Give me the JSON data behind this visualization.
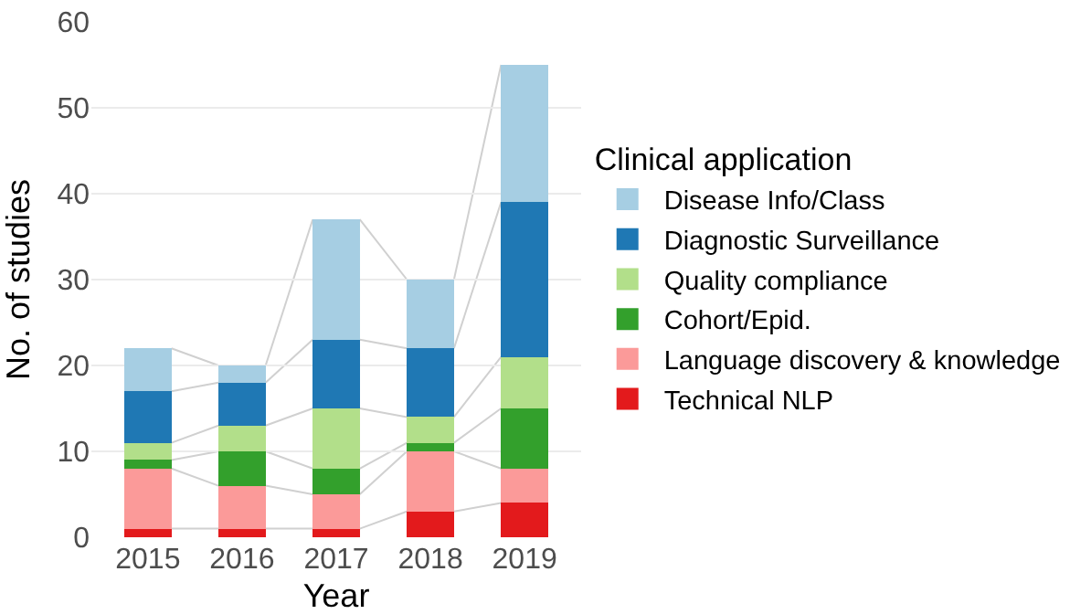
{
  "chart_data": {
    "type": "bar",
    "stacked": true,
    "xlabel": "Year",
    "ylabel": "No. of studies",
    "legend_title": "Clinical application",
    "categories": [
      "2015",
      "2016",
      "2017",
      "2018",
      "2019"
    ],
    "series": [
      {
        "name": "Technical NLP",
        "color": "#e31a1c",
        "values": [
          1,
          1,
          1,
          3,
          4
        ]
      },
      {
        "name": "Language discovery & knowledge",
        "color": "#fb9a99",
        "values": [
          7,
          5,
          4,
          7,
          4
        ]
      },
      {
        "name": "Cohort/Epid.",
        "color": "#33a02c",
        "values": [
          1,
          4,
          3,
          1,
          7
        ]
      },
      {
        "name": "Quality compliance",
        "color": "#b2df8a",
        "values": [
          2,
          3,
          7,
          3,
          6
        ]
      },
      {
        "name": "Diagnostic Surveillance",
        "color": "#1f78b4",
        "values": [
          6,
          5,
          8,
          8,
          18
        ]
      },
      {
        "name": "Disease Info/Class",
        "color": "#a6cee3",
        "values": [
          5,
          2,
          14,
          8,
          16
        ]
      }
    ],
    "ylim": [
      0,
      60
    ],
    "yticks": [
      0,
      10,
      20,
      30,
      40,
      50,
      60
    ],
    "grid": "y",
    "legend": "right"
  }
}
